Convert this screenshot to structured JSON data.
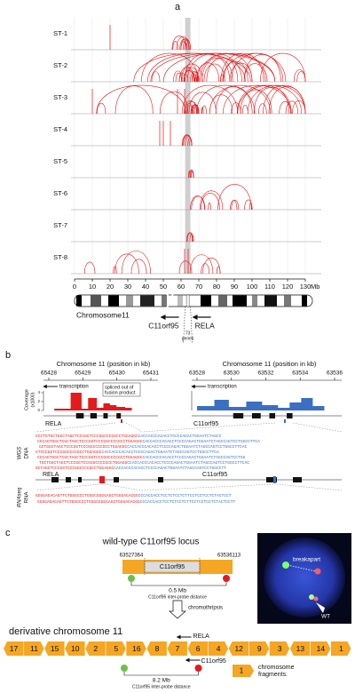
{
  "panel_a": {
    "label": "a",
    "tracks": [
      "ST-1",
      "ST-2",
      "ST-3",
      "ST-4",
      "ST-5",
      "ST-6",
      "ST-7",
      "ST-8"
    ],
    "xticks": [
      0,
      10,
      20,
      30,
      40,
      50,
      60,
      70,
      80,
      90,
      100,
      110,
      120,
      130
    ],
    "x_unit": "Mb",
    "chromosome": "Chromosome11",
    "genes": [
      "C11orf95",
      "RELA"
    ],
    "gene_count": "73",
    "gene_count_unit": "genes"
  },
  "panel_b": {
    "label": "b",
    "left": {
      "title": "Chromosome 11 (position in kb)",
      "ticks": [
        65428,
        65429,
        65430,
        65431
      ],
      "direction": "transcription",
      "note": [
        "spliced out of",
        "fusion product"
      ],
      "gene": "RELA"
    },
    "right": {
      "title": "Chromosome 11 (position in kb)",
      "ticks": [
        63528,
        63530,
        63532,
        63534,
        63536
      ],
      "direction": "transcription",
      "gene": "C11orf95"
    },
    "coverage_label": "Coverage",
    "coverage_unit": "(x1000)",
    "coverage_ticks": [
      0,
      2,
      4
    ],
    "wgs_label": [
      "WGS",
      "DNA"
    ],
    "rna_label": [
      "RNAseq",
      "RNA"
    ],
    "wgs_genes": [
      "RELA",
      "C11orf95"
    ],
    "rna_genes": [
      "RELA",
      "C11orf95"
    ],
    "wgs_reads": [
      {
        "red": "CCCTGTGCTGGCTAGCTCCCGGTCCCGGCCCCGCCTGGAGGC",
        "blue": "CACCACCCACACCTCCCCAGACTGGAATCTAGCC"
      },
      {
        "red": "CCCAGTGGCTCGCTAGCTCCCGGTCCCGGCCCCGCCTGGAGGC",
        "blue": "CACCACCCACACCTCCCCAGACTGGAATCTAGCCAGTCCTGGCCTTCA"
      },
      {
        "red": "GCTGGCTAGCTCCCGGTCCCGGCCCCGCCTGGAGGC",
        "blue": "CACCACCCACACCTCCCCAGACTGGAATCTAGCCAGTCCTGGCCTTCAC"
      },
      {
        "red": "CTCCCGGTCCCGGCCCCGCCTGGAGGC",
        "blue": "CACCACCCACACCTCCCCAGACTGGAATCTAGCCAGTCCTGGCCTTCA"
      },
      {
        "red": "CCCAGTGGCTCGCTAGCTCCCGGTCCCGGCCCCGCCTGGAGGC",
        "blue": "CACCACCCACACCTCCCCAGACTGGAATCTAGCCAGTCCTGG"
      },
      {
        "red": "TGCTGGCTAGCTCCCGGTCCCGGCCCCGCCTGGAGGC",
        "blue": "CACCACCCACACCTCCCCAGACTGGAATCTAGCCAGTCCTGGCCTTCAC"
      },
      {
        "red": "GCTAGCTCCCGGTCCCGGCCCCGCCTGGAGGC",
        "blue": "CACCACCCACACCTCCCCAGACTGGAATCTAGCCAGTCCTGGCCTT"
      }
    ],
    "rna_reads": [
      {
        "red": "GGGGAGACAGTTCTGGGCCCTGGGCGGGGAGCTGGGACACGG",
        "blue": "CCCACCACCTCCTCTCCTCTTCCTCCTCCTCTACTCCT"
      },
      {
        "red": "GGGGAGACAGTTCTGGGCCCTGGGCGGGGAGCTGGGACACGG",
        "blue": "CCCACCACCTCCTCTCCTCTTCCTCCTCCTCTACTCCTT"
      }
    ]
  },
  "panel_c": {
    "label": "c",
    "wt_title": "wild-type C11orf95 locus",
    "start": 63527364,
    "end": 63536113,
    "gene": "C11orf95",
    "wt_distance": "0.5 Mb",
    "distance_label": "C11orf95 inter-probe distance",
    "process": "chromothripsis",
    "fish_labels": [
      "breakapart",
      "WT"
    ],
    "der_title": "derivative chromosome 11",
    "fragments": [
      17,
      11,
      15,
      10,
      2,
      5,
      16,
      8,
      7,
      6,
      4,
      12,
      9,
      3,
      13,
      14,
      1
    ],
    "der_genes": [
      "RELA",
      "C11orf95"
    ],
    "der_distance": "8.2 Mb",
    "der_distance_label": "C11orf95 inter-probe distance",
    "legend_fragment": 1,
    "legend_label": [
      "chromosome",
      "fragments."
    ]
  }
}
